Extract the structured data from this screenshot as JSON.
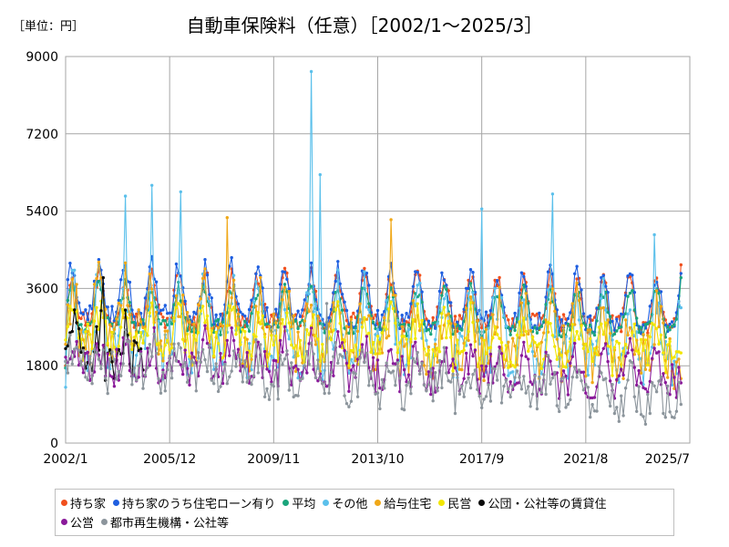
{
  "unit_label": "［単位：円］",
  "chart_data": {
    "type": "line",
    "title": "自動車保険料（任意）［2002/1～2025/3］",
    "xlabel": "",
    "ylabel": "",
    "ylim": [
      0,
      9000
    ],
    "yticks": [
      0,
      1800,
      3600,
      5400,
      7200,
      9000
    ],
    "ytick_labels": [
      "0",
      "1800",
      "3600",
      "5400",
      "7200",
      "9000"
    ],
    "xlim": [
      "2002-01",
      "2025-07"
    ],
    "xticks": [
      "2002-01",
      "2005-12",
      "2009-11",
      "2013-10",
      "2017-09",
      "2021-08",
      "2025-07"
    ],
    "xtick_labels": [
      "2002/1",
      "2005/12",
      "2009/11",
      "2013/10",
      "2017/9",
      "2021/8",
      "2025/7"
    ],
    "grid": true,
    "legend_position": "bottom",
    "series": [
      {
        "name": "持ち家",
        "color": "#f0501e",
        "start": "2002-01",
        "end": "2025-03",
        "base_start": 3250,
        "base_end": 3100,
        "amplitude": 700,
        "noise": 220,
        "peaks": [],
        "first_value": 1800,
        "last_value": 4150
      },
      {
        "name": "持ち家のうち住宅ローン有り",
        "color": "#1f5fe0",
        "start": "2002-01",
        "end": "2025-03",
        "base_start": 3400,
        "base_end": 3150,
        "amplitude": 750,
        "noise": 240,
        "peaks": [],
        "first_value": 1900,
        "last_value": 3950
      },
      {
        "name": "平均",
        "color": "#1aa57c",
        "start": "2002-01",
        "end": "2025-03",
        "base_start": 3050,
        "base_end": 2900,
        "amplitude": 600,
        "noise": 180,
        "peaks": [],
        "first_value": 1750,
        "last_value": 3850
      },
      {
        "name": "その他",
        "color": "#5bc0eb",
        "start": "2002-01",
        "end": "2025-03",
        "base_start": 2700,
        "base_end": 2400,
        "amplitude": 900,
        "noise": 700,
        "peaks": [
          {
            "date": "2004-04",
            "value": 5750
          },
          {
            "date": "2005-04",
            "value": 6000
          },
          {
            "date": "2006-05",
            "value": 5850
          },
          {
            "date": "2011-04",
            "value": 8650
          },
          {
            "date": "2011-08",
            "value": 6250
          },
          {
            "date": "2017-09",
            "value": 5450
          },
          {
            "date": "2020-05",
            "value": 5800
          },
          {
            "date": "2024-03",
            "value": 4850
          }
        ],
        "first_value": 1300,
        "last_value": 3150
      },
      {
        "name": "給与住宅",
        "color": "#f0a818",
        "start": "2002-01",
        "end": "2025-03",
        "base_start": 2900,
        "base_end": 2300,
        "amplitude": 700,
        "noise": 700,
        "peaks": [
          {
            "date": "2008-02",
            "value": 5250
          },
          {
            "date": "2014-04",
            "value": 5200
          }
        ],
        "first_value": 2300,
        "last_value": 1500
      },
      {
        "name": "民営",
        "color": "#f2e600",
        "start": "2002-01",
        "end": "2025-03",
        "base_start": 2600,
        "base_end": 2200,
        "amplitude": 500,
        "noise": 450,
        "peaks": [],
        "first_value": 2400,
        "last_value": 2100
      },
      {
        "name": "公団・公社等の賃貸住",
        "color": "#0a0a0a",
        "start": "2002-01",
        "end": "2004-12",
        "base_start": 2300,
        "base_end": 2000,
        "amplitude": 500,
        "noise": 600,
        "peaks": [
          {
            "date": "2003-06",
            "value": 3850
          }
        ],
        "first_value": 2200,
        "last_value": 1700
      },
      {
        "name": "公営",
        "color": "#8a1a9a",
        "start": "2002-01",
        "end": "2025-03",
        "base_start": 2000,
        "base_end": 1600,
        "amplitude": 400,
        "noise": 450,
        "peaks": [],
        "first_value": 2000,
        "last_value": 1400
      },
      {
        "name": "都市再生機構・公社等",
        "color": "#8c959c",
        "start": "2002-01",
        "end": "2025-03",
        "base_start": 1900,
        "base_end": 1100,
        "amplitude": 400,
        "noise": 500,
        "peaks": [
          {
            "date": "2011-11",
            "value": 3250
          }
        ],
        "first_value": 1900,
        "last_value": 900
      }
    ]
  }
}
